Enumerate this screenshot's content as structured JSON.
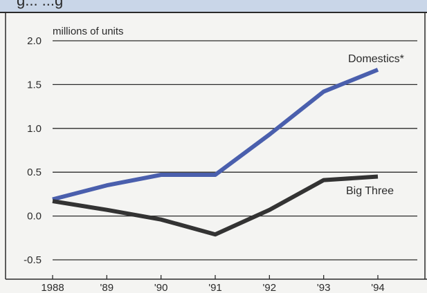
{
  "chart_data": {
    "type": "line",
    "title": "",
    "title_band_fragment": "g... ...g",
    "ylabel": "millions of units",
    "xlabel": "",
    "categories": [
      "1988",
      "'89",
      "'90",
      "'91",
      "'92",
      "'93",
      "'94"
    ],
    "ylim": [
      -0.5,
      2.0
    ],
    "yticks": [
      "2.0",
      "1.5",
      "1.0",
      "0.5",
      "0.0",
      "-0.5"
    ],
    "grid": true,
    "series": [
      {
        "name": "Domestics*",
        "color": "#4a5fad",
        "values": [
          0.19,
          0.35,
          0.47,
          0.47,
          0.93,
          1.42,
          1.67
        ]
      },
      {
        "name": "Big Three",
        "color": "#333333",
        "values": [
          0.17,
          0.07,
          -0.04,
          -0.21,
          0.07,
          0.41,
          0.45
        ]
      }
    ]
  }
}
